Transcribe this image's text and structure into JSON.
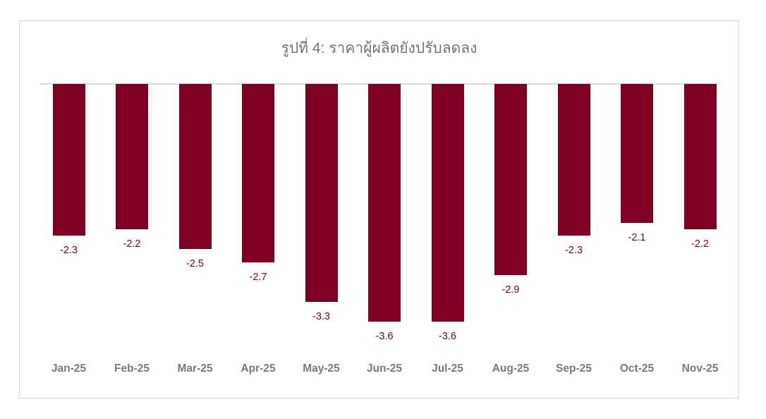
{
  "chart": {
    "title": "รูปที่ 4: ราคาผู้ผลิตยังปรับลดลง"
  },
  "chart_data": {
    "type": "bar",
    "title": "รูปที่ 4: ราคาผู้ผลิตยังปรับลดลง",
    "categories": [
      "Jan-25",
      "Feb-25",
      "Mar-25",
      "Apr-25",
      "May-25",
      "Jun-25",
      "Jul-25",
      "Aug-25",
      "Sep-25",
      "Oct-25",
      "Nov-25"
    ],
    "values": [
      -2.3,
      -2.2,
      -2.5,
      -2.7,
      -3.3,
      -3.6,
      -3.6,
      -2.9,
      -2.3,
      -2.1,
      -2.2
    ],
    "data_labels": [
      "-2.3",
      "-2.2",
      "-2.5",
      "-2.7",
      "-3.3",
      "-3.6",
      "-3.6",
      "-2.9",
      "-2.3",
      "-2.1",
      "-2.2"
    ],
    "xlabel": "",
    "ylabel": "",
    "ylim": [
      -4,
      0
    ],
    "grid": false,
    "legend": false,
    "data_label_position": "outside-end-below",
    "colors": {
      "bar": "#7E0023",
      "data_label": "#7E0023",
      "axis_label": "#7A7A7A",
      "title": "#757575",
      "zero_line": "#D9D9D9",
      "card_border": "#D9D9D9",
      "background": "#FFFFFF"
    }
  }
}
